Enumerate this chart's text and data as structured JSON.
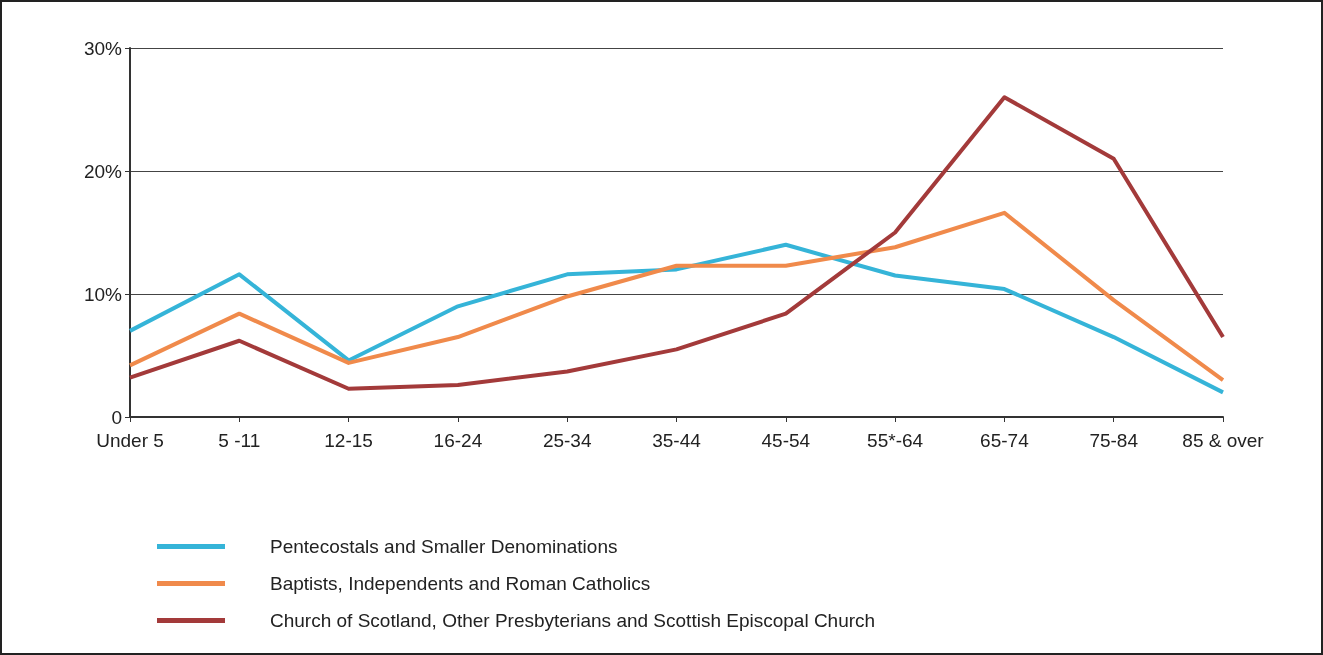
{
  "chart_data": {
    "type": "line",
    "categories": [
      "Under 5",
      "5 -11",
      "12-15",
      "16-24",
      "25-34",
      "35-44",
      "45-54",
      "55*-64",
      "65-74",
      "75-84",
      "85 & over"
    ],
    "series": [
      {
        "name": "Pentecostals and Smaller Denominations",
        "color": "#35b4d8",
        "values": [
          7,
          11.6,
          4.6,
          9,
          11.6,
          12,
          14,
          11.5,
          10.4,
          6.5,
          2
        ]
      },
      {
        "name": "Baptists, Independents and Roman Catholics",
        "color": "#f08a4b",
        "values": [
          4.2,
          8.4,
          4.4,
          6.5,
          9.8,
          12.3,
          12.3,
          13.8,
          16.6,
          9.5,
          3
        ]
      },
      {
        "name": "Church of Scotland, Other Presbyterians and Scottish Episcopal Church",
        "color": "#a33a3a",
        "values": [
          3.2,
          6.2,
          2.3,
          2.6,
          3.7,
          5.5,
          8.4,
          15,
          26,
          21,
          6.5
        ]
      }
    ],
    "ylim": [
      0,
      30
    ],
    "yticks": [
      {
        "value": 0,
        "label": "0"
      },
      {
        "value": 10,
        "label": "10%"
      },
      {
        "value": 20,
        "label": "20%"
      },
      {
        "value": 30,
        "label": "30%"
      }
    ],
    "grid": "y",
    "legend": "bottom",
    "marker": "none",
    "line_style": "solid"
  }
}
